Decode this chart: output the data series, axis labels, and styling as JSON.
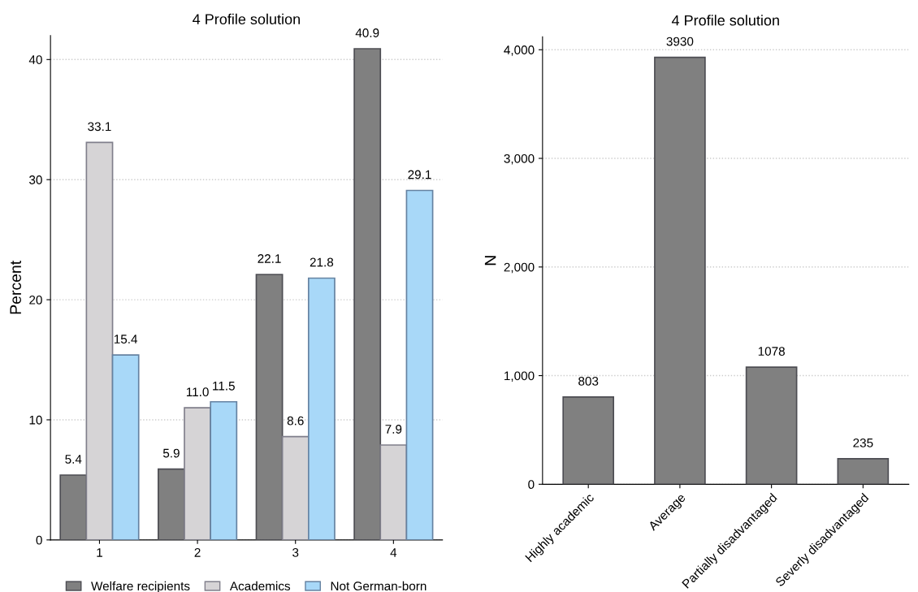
{
  "chart_data": [
    {
      "type": "bar",
      "title": "4 Profile solution",
      "ylabel": "Percent",
      "categories": [
        "1",
        "2",
        "3",
        "4"
      ],
      "series": [
        {
          "name": "Welfare recipients",
          "color": "#808080",
          "values": [
            5.4,
            5.9,
            22.1,
            40.9
          ]
        },
        {
          "name": "Academics",
          "color": "#d6d4d6",
          "values": [
            33.1,
            11.0,
            8.6,
            7.9
          ]
        },
        {
          "name": "Not German-born",
          "color": "#a8d8f8",
          "values": [
            15.4,
            11.5,
            21.8,
            29.1
          ]
        }
      ],
      "value_labels": [
        [
          "5.4",
          "5.9",
          "22.1",
          "40.9"
        ],
        [
          "33.1",
          "11.0",
          "8.6",
          "7.9"
        ],
        [
          "15.4",
          "11.5",
          "21.8",
          "29.1"
        ]
      ],
      "ylim": [
        0,
        42
      ],
      "yticks": [
        0,
        10,
        20,
        30,
        40
      ],
      "grid": "y",
      "legend": "bottom"
    },
    {
      "type": "bar",
      "title": "4 Profile solution",
      "ylabel": "N",
      "categories": [
        "Highly academic",
        "Average",
        "Partially disadvantaged",
        "Severly disadvantaged"
      ],
      "values": [
        803,
        3930,
        1078,
        235
      ],
      "color": "#808080",
      "data_labels": true,
      "ylim": [
        0,
        4120
      ],
      "yticks": [
        0,
        {
          "value": 1000,
          "label": "1,000"
        },
        {
          "value": 2000,
          "label": "2,000"
        },
        {
          "value": 3000,
          "label": "3,000"
        },
        {
          "value": 4000,
          "label": "4,000"
        }
      ],
      "grid": "y"
    }
  ]
}
